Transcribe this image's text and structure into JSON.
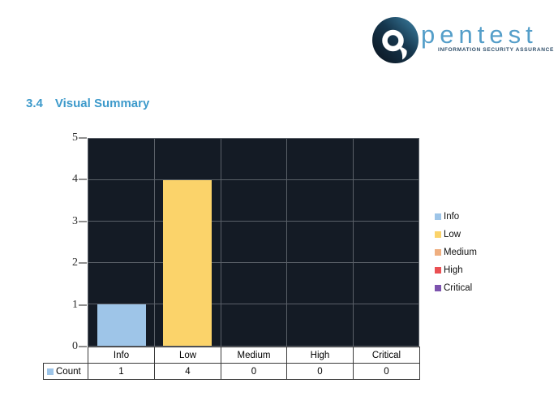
{
  "logo": {
    "brand": "pentest",
    "tagline": "INFORMATION SECURITY ASSURANCE",
    "mark_icon": "magnifier-q-icon",
    "colors": {
      "brand_text": "#549EC9",
      "tagline_text": "#2E4D68",
      "mark_dark": "#0A121C",
      "mark_mid": "#16374E",
      "mark_light": "#3E85A8"
    }
  },
  "heading": {
    "number": "3.4",
    "title": "Visual Summary",
    "color": "#3D9ACB"
  },
  "chart_data": {
    "type": "bar",
    "title": "",
    "categories": [
      "Info",
      "Low",
      "Medium",
      "High",
      "Critical"
    ],
    "series": [
      {
        "name": "Count",
        "values": [
          1,
          4,
          0,
          0,
          0
        ]
      }
    ],
    "ylim": [
      0,
      5
    ],
    "yticks": [
      0,
      1,
      2,
      3,
      4,
      5
    ],
    "grid": true,
    "legend_position": "right",
    "plot_bg": "#141B25",
    "grid_color": "#5A6068",
    "tick_color": "#8F8F8F",
    "bar_colors": [
      "#9EC5E8",
      "#FBD36A",
      "#EFAF80",
      "#EA5053",
      "#7D53AE"
    ],
    "series_color": "#9EC5E8",
    "data_table": {
      "row_label": "Count",
      "values": [
        "1",
        "4",
        "0",
        "0",
        "0"
      ]
    }
  }
}
